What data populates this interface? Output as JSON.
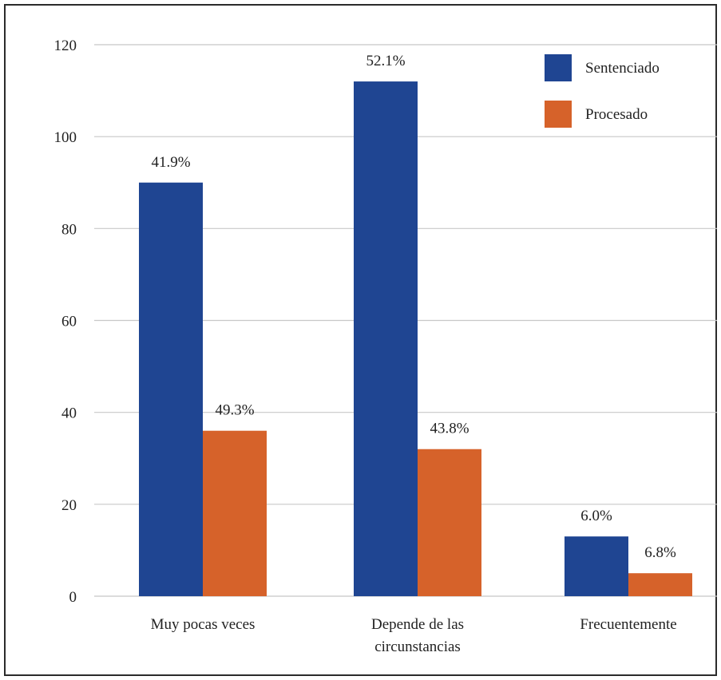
{
  "chart_data": {
    "type": "bar",
    "categories": [
      [
        "Muy pocas veces"
      ],
      [
        "Depende de las",
        "circunstancias"
      ],
      [
        "Frecuentemente"
      ]
    ],
    "series": [
      {
        "name": "Sentenciado",
        "color": "#1f4592",
        "values": [
          90,
          112,
          13
        ],
        "labels": [
          "41.9%",
          "52.1%",
          "6.0%"
        ]
      },
      {
        "name": "Procesado",
        "color": "#d6622a",
        "values": [
          36,
          32,
          5
        ],
        "labels": [
          "49.3%",
          "43.8%",
          "6.8%"
        ]
      }
    ],
    "ylim": [
      0,
      120
    ],
    "yticks": [
      0,
      20,
      40,
      60,
      80,
      100,
      120
    ],
    "grid": true,
    "legend": "top-right",
    "gridline_color": "#c8c8c8"
  }
}
